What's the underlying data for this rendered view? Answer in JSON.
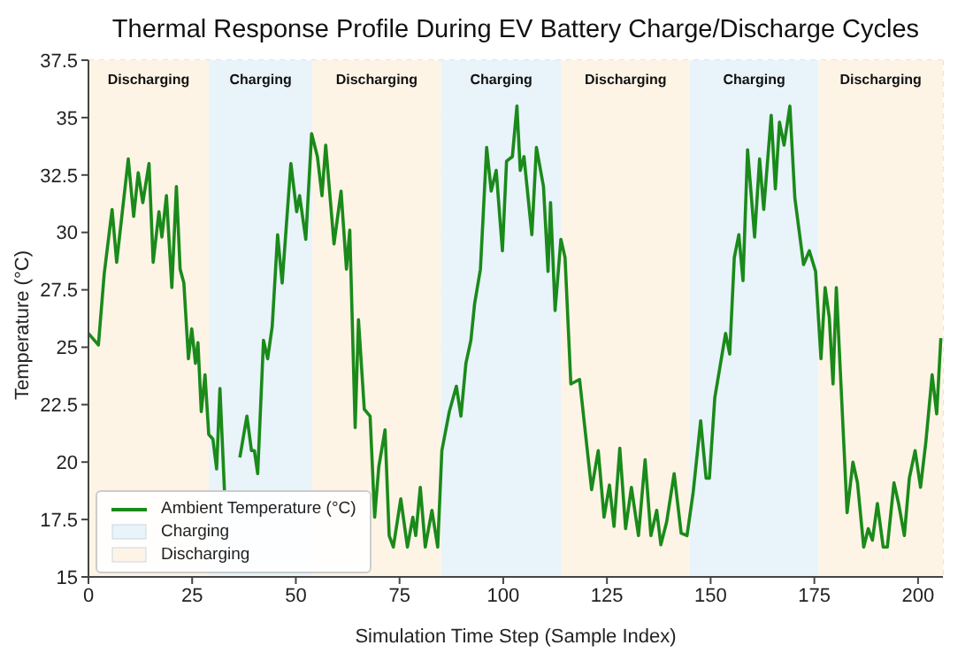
{
  "chart_data": {
    "type": "line",
    "title": "Thermal Response Profile During EV Battery Charge/Discharge Cycles",
    "xlabel": "Simulation Time Step (Sample Index)",
    "ylabel": "Temperature (°C)",
    "x": [
      0,
      2.4,
      3.8,
      5.7,
      6.8,
      9.6,
      10.9,
      12,
      13.1,
      14.6,
      15.6,
      17,
      17.7,
      18.8,
      20.1,
      21.2,
      22.1,
      23,
      24.1,
      24.9,
      25.8,
      26.4,
      27.2,
      28.1,
      29,
      30,
      30.9,
      31.7,
      32.8,
      34.5,
      36.5,
      38.2,
      39.3,
      40,
      40.8,
      42.2,
      43.2,
      44.3,
      45.6,
      46.7,
      48.8,
      50.2,
      50.9,
      52.4,
      53.8,
      55.2,
      56.3,
      57.2,
      59.2,
      60.9,
      62.2,
      63,
      64.3,
      65.1,
      66.5,
      67.9,
      69,
      70,
      71.5,
      72.5,
      73.5,
      75.3,
      76.9,
      78.2,
      78.9,
      80,
      81.2,
      82.8,
      84.2,
      85.2,
      87,
      88.7,
      89.8,
      91,
      92.2,
      93.1,
      94.5,
      96,
      97.1,
      98.3,
      99.8,
      100.8,
      102.2,
      103.3,
      104.1,
      105,
      106.9,
      108,
      109.7,
      110.8,
      111.4,
      112.5,
      113.9,
      114.9,
      116.3,
      118.4,
      121.3,
      122.9,
      124.3,
      125.6,
      126.7,
      128.1,
      129.5,
      130.9,
      132.6,
      134.2,
      135.6,
      137,
      138,
      139.4,
      141.2,
      142.9,
      144.3,
      145.8,
      147.6,
      148.9,
      149.7,
      151,
      153.6,
      154.6,
      155.7,
      156.8,
      157.8,
      158.9,
      160.6,
      161.8,
      162.8,
      164.6,
      165.6,
      166.6,
      167.7,
      169.1,
      170.3,
      172.4,
      173.8,
      175.3,
      176.6,
      177.6,
      178.6,
      179.5,
      180.3,
      182.9,
      184.3,
      185.4,
      186.9,
      188,
      189,
      190.2,
      191.6,
      192.6,
      194.2,
      195.3,
      196.7,
      197.9,
      199.3,
      200.6,
      201.9,
      203.4,
      204.5,
      205.5
    ],
    "series": [
      {
        "name": "Ambient Temperature (°C)",
        "color": "#1a8a1a",
        "values": [
          25.6,
          25.1,
          28.2,
          31,
          28.7,
          33.2,
          30.7,
          32.6,
          31.3,
          33,
          28.7,
          30.9,
          29.8,
          31.6,
          27.6,
          32,
          28.4,
          27.8,
          24.5,
          25.8,
          24.3,
          25.2,
          22.2,
          23.8,
          21.2,
          21,
          19.7,
          23.2,
          18.7,
          null,
          20.2,
          22,
          20.5,
          20.5,
          19.5,
          25.3,
          24.5,
          25.9,
          29.9,
          27.8,
          33,
          30.9,
          31.6,
          29.7,
          34.3,
          33.3,
          31.6,
          33.8,
          29.5,
          31.8,
          28.4,
          30.1,
          21.5,
          26.2,
          22.3,
          22,
          17.6,
          19.8,
          21.4,
          16.8,
          16.3,
          18.4,
          16.3,
          17.6,
          16.8,
          18.9,
          16.3,
          17.9,
          16.3,
          20.5,
          22.2,
          23.3,
          22,
          24.3,
          25.3,
          26.9,
          28.4,
          33.7,
          31.8,
          32.7,
          29.2,
          33.1,
          33.3,
          35.5,
          32.7,
          33.3,
          29.9,
          33.7,
          32,
          28.3,
          31.3,
          26.6,
          29.7,
          28.9,
          23.4,
          23.6,
          18.8,
          20.5,
          17.6,
          19,
          17.2,
          20.6,
          17.1,
          18.9,
          16.8,
          20.1,
          16.8,
          17.9,
          16.4,
          17.4,
          19.5,
          16.9,
          16.8,
          18.7,
          21.8,
          19.3,
          19.3,
          22.8,
          25.6,
          24.7,
          28.9,
          29.9,
          27.9,
          33.6,
          29.8,
          33.2,
          31,
          35.1,
          31.9,
          34.8,
          33.8,
          35.5,
          31.5,
          28.6,
          29.2,
          28.3,
          24.5,
          27.6,
          26.3,
          23.4,
          27.6,
          17.8,
          20,
          19.1,
          16.3,
          17.1,
          16.6,
          18.2,
          16.3,
          16.3,
          19.1,
          18.2,
          16.8,
          19.3,
          20.5,
          18.9,
          20.9,
          23.8,
          22.1,
          25.4
        ]
      }
    ],
    "bands": [
      {
        "axis": "x",
        "from": 0,
        "to": 29,
        "label": "Discharging",
        "color": "#fdf4e6"
      },
      {
        "axis": "x",
        "from": 29,
        "to": 54,
        "label": "Charging",
        "color": "#e9f3fa"
      },
      {
        "axis": "x",
        "from": 54,
        "to": 85,
        "label": "Discharging",
        "color": "#fdf4e6"
      },
      {
        "axis": "x",
        "from": 85,
        "to": 114,
        "label": "Charging",
        "color": "#e9f3fa"
      },
      {
        "axis": "x",
        "from": 114,
        "to": 145,
        "label": "Discharging",
        "color": "#fdf4e6"
      },
      {
        "axis": "x",
        "from": 145,
        "to": 176,
        "label": "Charging",
        "color": "#e9f3fa"
      },
      {
        "axis": "x",
        "from": 176,
        "to": 206,
        "label": "Discharging",
        "color": "#fdf4e6"
      }
    ],
    "xlim": [
      0,
      206
    ],
    "xticks": [
      0,
      25,
      50,
      75,
      100,
      125,
      150,
      175,
      200
    ],
    "ylim": [
      15,
      37.5
    ],
    "yticks": [
      15,
      17.5,
      20,
      22.5,
      25,
      27.5,
      30,
      32.5,
      35,
      37.5
    ],
    "grid": true,
    "legend": "bottom left",
    "marker": "none",
    "line_style": "solid"
  }
}
